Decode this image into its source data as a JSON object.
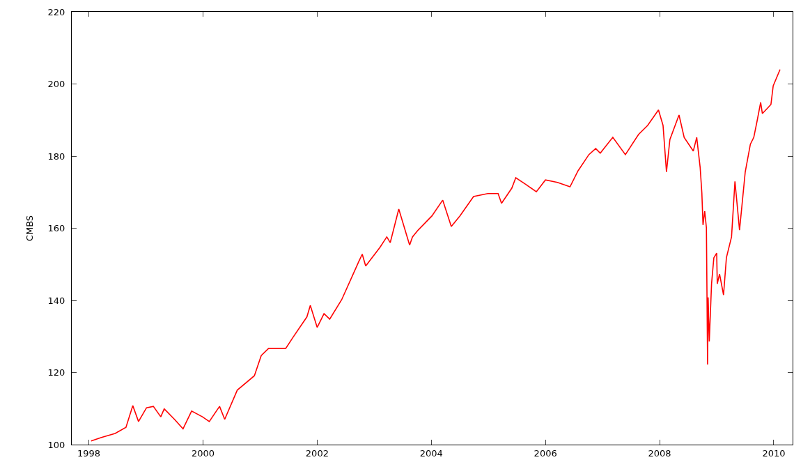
{
  "chart_data": {
    "type": "line",
    "ylabel": "CMBS",
    "xlim": [
      1997.7,
      2010.33
    ],
    "ylim": [
      100,
      220
    ],
    "xticks": [
      1998,
      2000,
      2002,
      2004,
      2006,
      2008,
      2010
    ],
    "yticks": [
      100,
      120,
      140,
      160,
      180,
      200,
      220
    ],
    "grid": false,
    "marker": "none",
    "line_style": "solid",
    "series": [
      {
        "color": "#ff0000",
        "x": [
          1998.04,
          1998.22,
          1998.46,
          1998.65,
          1998.77,
          1998.87,
          1999.01,
          1999.13,
          1999.26,
          1999.32,
          1999.5,
          1999.65,
          1999.8,
          1999.99,
          2000.11,
          2000.29,
          2000.38,
          2000.6,
          2000.9,
          2001.02,
          2001.15,
          2001.45,
          2001.57,
          2001.82,
          2001.88,
          2002.0,
          2002.12,
          2002.22,
          2002.43,
          2002.73,
          2002.79,
          2002.85,
          2003.1,
          2003.22,
          2003.28,
          2003.43,
          2003.62,
          2003.67,
          2003.77,
          2004.01,
          2004.2,
          2004.35,
          2004.5,
          2004.74,
          2004.99,
          2005.17,
          2005.23,
          2005.41,
          2005.48,
          2005.66,
          2005.84,
          2006.0,
          2006.21,
          2006.43,
          2006.57,
          2006.76,
          2006.88,
          2006.96,
          2007.18,
          2007.4,
          2007.63,
          2007.79,
          2007.98,
          2008.06,
          2008.12,
          2008.18,
          2008.34,
          2008.43,
          2008.59,
          2008.65,
          2008.71,
          2008.74,
          2008.76,
          2008.79,
          2008.82,
          2008.84,
          2008.85,
          2008.87,
          2008.91,
          2008.95,
          2009.0,
          2009.01,
          2009.05,
          2009.12,
          2009.17,
          2009.26,
          2009.32,
          2009.4,
          2009.44,
          2009.5,
          2009.59,
          2009.65,
          2009.71,
          2009.77,
          2009.8,
          2009.95,
          2009.99,
          2010.11
        ],
        "values": [
          101.0,
          102.0,
          103.1,
          104.8,
          110.8,
          106.4,
          110.2,
          110.6,
          107.7,
          109.9,
          107.0,
          104.4,
          109.3,
          107.7,
          106.4,
          110.6,
          107.0,
          115.1,
          119.1,
          124.7,
          126.7,
          126.7,
          129.6,
          135.4,
          138.6,
          132.5,
          136.3,
          134.8,
          140.2,
          150.8,
          152.8,
          149.5,
          154.7,
          157.6,
          156.0,
          165.3,
          155.3,
          157.6,
          159.5,
          163.4,
          167.8,
          160.5,
          163.4,
          168.8,
          169.6,
          169.6,
          166.9,
          171.1,
          174.0,
          172.1,
          170.1,
          173.4,
          172.7,
          171.5,
          175.9,
          180.4,
          182.1,
          180.8,
          185.2,
          180.4,
          186.0,
          188.5,
          192.8,
          188.5,
          175.6,
          184.6,
          191.4,
          185.2,
          181.4,
          185.2,
          176.9,
          169.8,
          160.9,
          164.7,
          160.1,
          122.2,
          140.8,
          128.6,
          144.6,
          151.8,
          153.1,
          144.6,
          147.3,
          141.5,
          151.8,
          157.6,
          173.0,
          159.5,
          165.9,
          175.6,
          183.3,
          185.2,
          189.9,
          194.9,
          191.8,
          194.3,
          199.5,
          204.0
        ]
      }
    ]
  }
}
